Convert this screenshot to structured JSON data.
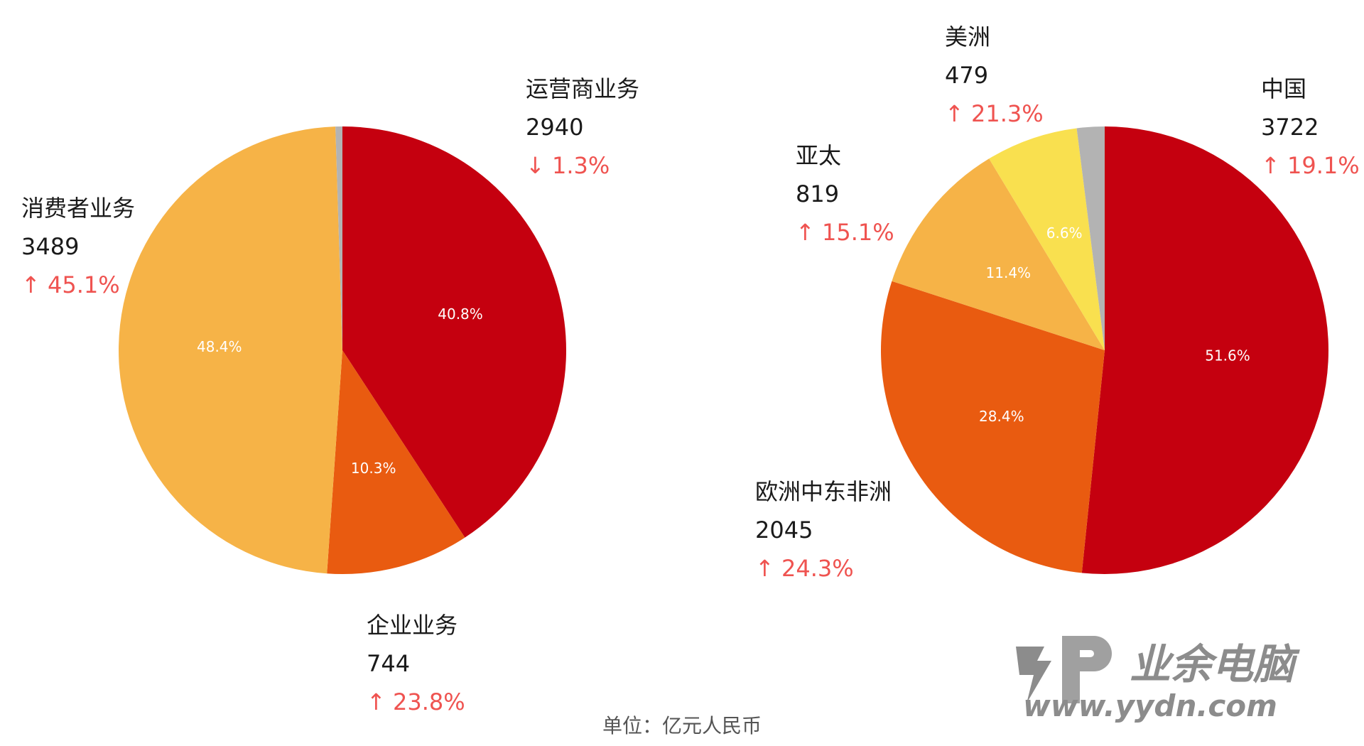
{
  "chart_data": [
    {
      "type": "pie",
      "slices": [
        {
          "name": "运营商业务",
          "value": 2940,
          "percent_label": "40.8%",
          "change": "↓ 1.3%",
          "color": "#c5000f"
        },
        {
          "name": "企业业务",
          "value": 744,
          "percent_label": "10.3%",
          "change": "↑ 23.8%",
          "color": "#e95b10"
        },
        {
          "name": "消费者业务",
          "value": 3489,
          "percent_label": "48.4%",
          "change": "↑ 45.1%",
          "color": "#f6b347"
        },
        {
          "name": "",
          "value": 36,
          "percent_label": "",
          "change": "",
          "color": "#b3b3b3"
        }
      ]
    },
    {
      "type": "pie",
      "slices": [
        {
          "name": "中国",
          "value": 3722,
          "percent_label": "51.6%",
          "change": "↑ 19.1%",
          "color": "#c5000f"
        },
        {
          "name": "欧洲中东非洲",
          "value": 2045,
          "percent_label": "28.4%",
          "change": "↑ 24.3%",
          "color": "#e95b10"
        },
        {
          "name": "亚太",
          "value": 819,
          "percent_label": "11.4%",
          "change": "↑ 15.1%",
          "color": "#f6b347"
        },
        {
          "name": "美洲",
          "value": 479,
          "percent_label": "6.6%",
          "change": "↑ 21.3%",
          "color": "#f9e04f"
        },
        {
          "name": "",
          "value": 144,
          "percent_label": "",
          "change": "",
          "color": "#b3b3b3"
        }
      ]
    }
  ],
  "unit_note": "单位：亿元人民币",
  "watermark": {
    "brand": "业余电脑",
    "url": "www.yydn.com"
  }
}
